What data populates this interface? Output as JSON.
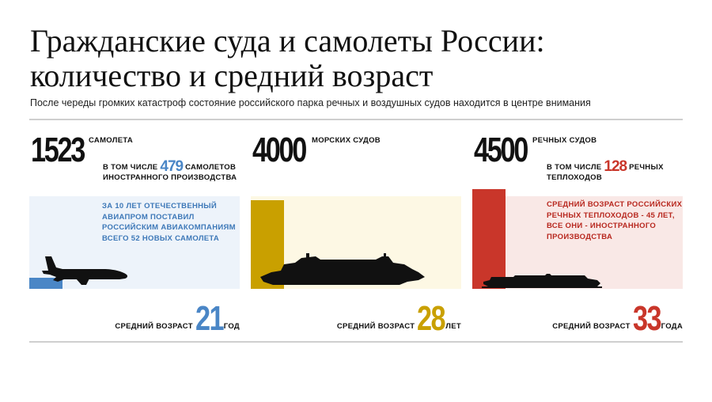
{
  "title": "Гражданские суда и самолеты России: количество и средний возраст",
  "subtitle": "После череды громких катастроф состояние российского парка речных и воздушных судов находится в центре внимания",
  "colors": {
    "aircraft": "#4a86c6",
    "sea": "#c9a000",
    "river": "#c9362a"
  },
  "icons": [
    "airplane-icon",
    "cruise-ship-icon",
    "river-boat-icon"
  ],
  "columns": [
    {
      "id": "aircraft",
      "count": "1523",
      "unit": "САМОЛЕТА",
      "incl_prefix": "В ТОМ ЧИСЛЕ",
      "incl_value": "479",
      "incl_suffix": "САМОЛЕТОВ",
      "incl_line2": "ИНОСТРАННОГО ПРОИЗВОДСТВА",
      "note": [
        "ЗА 10 ЛЕТ ОТЕЧЕСТВЕННЫЙ",
        "АВИАПРОМ ПОСТАВИЛ",
        "РОССИЙСКИМ АВИАКОМПАНИЯМ",
        "ВСЕГО 52 НОВЫХ САМОЛЕТА"
      ],
      "age_label": "СРЕДНИЙ ВОЗРАСТ",
      "age_value": "21",
      "age_suffix": "ГОД"
    },
    {
      "id": "sea",
      "count": "4000",
      "unit": "МОРСКИХ СУДОВ",
      "age_label": "СРЕДНИЙ ВОЗРАСТ",
      "age_value": "28",
      "age_suffix": "ЛЕТ"
    },
    {
      "id": "river",
      "count": "4500",
      "unit": "РЕЧНЫХ СУДОВ",
      "incl_prefix": "В ТОМ ЧИСЛЕ",
      "incl_value": "128",
      "incl_suffix": "РЕЧНЫХ",
      "incl_line2": "ТЕПЛОХОДОВ",
      "note": [
        "СРЕДНИЙ ВОЗРАСТ РОССИЙСКИХ",
        "РЕЧНЫХ ТЕПЛОХОДОВ - 45 ЛЕТ,",
        "ВСЕ ОНИ - ИНОСТРАННОГО",
        "ПРОИЗВОДСТВА"
      ],
      "age_label": "СРЕДНИЙ ВОЗРАСТ",
      "age_value": "33",
      "age_suffix": "ГОДА"
    }
  ],
  "chart_data": {
    "type": "bar",
    "categories": [
      "САМОЛЕТА",
      "МОРСКИХ СУДОВ",
      "РЕЧНЫХ СУДОВ"
    ],
    "series": [
      {
        "values": [
          1523,
          4000,
          4500
        ]
      },
      {
        "values": [
          479,
          null,
          128
        ]
      },
      {
        "values": [
          21,
          28,
          33
        ]
      }
    ],
    "title": "Гражданские суда и самолеты России: количество и средний возраст",
    "xlabel": "",
    "ylabel": "",
    "grid": false,
    "legend": "none"
  }
}
